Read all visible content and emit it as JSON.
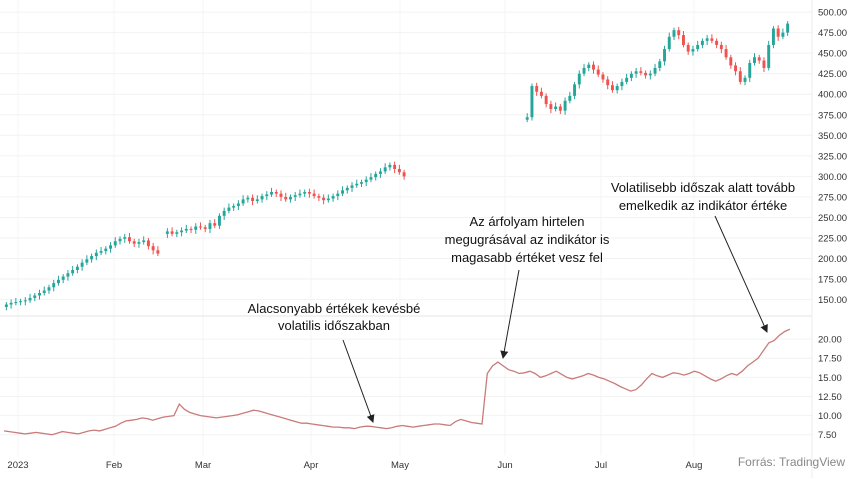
{
  "chart_data": [
    {
      "type": "candlestick",
      "ylim": [
        130,
        505
      ],
      "y_ticks": [
        "150.00",
        "175.00",
        "200.00",
        "225.00",
        "250.00",
        "275.00",
        "300.00",
        "325.00",
        "350.00",
        "375.00",
        "400.00",
        "425.00",
        "450.00",
        "475.00",
        "500.00"
      ],
      "colors": {
        "up": "#26a69a",
        "down": "#ef5350"
      },
      "closes": [
        [
          144,
          0
        ],
        [
          146,
          0
        ],
        [
          147,
          0
        ],
        [
          148,
          0
        ],
        [
          149,
          0
        ],
        [
          152,
          0
        ],
        [
          155,
          0
        ],
        [
          158,
          0
        ],
        [
          161,
          0
        ],
        [
          165,
          0
        ],
        [
          170,
          0
        ],
        [
          174,
          0
        ],
        [
          178,
          0
        ],
        [
          182,
          0
        ],
        [
          186,
          0
        ],
        [
          190,
          0
        ],
        [
          195,
          0
        ],
        [
          199,
          0
        ],
        [
          203,
          0
        ],
        [
          207,
          0
        ],
        [
          209,
          0
        ],
        [
          212,
          0
        ],
        [
          216,
          0
        ],
        [
          221,
          0
        ],
        [
          224,
          0
        ],
        [
          226,
          0
        ],
        [
          221,
          0
        ],
        [
          218,
          0
        ],
        [
          220,
          0
        ],
        [
          222,
          0
        ],
        [
          215,
          0
        ],
        [
          210,
          0
        ],
        [
          206,
          0
        ],
        [
          null,
          0
        ],
        [
          233,
          1
        ],
        [
          230,
          0
        ],
        [
          232,
          0
        ],
        [
          234,
          0
        ],
        [
          236,
          0
        ],
        [
          235,
          0
        ],
        [
          239,
          0
        ],
        [
          238,
          0
        ],
        [
          236,
          0
        ],
        [
          243,
          0
        ],
        [
          240,
          0
        ],
        [
          252,
          0
        ],
        [
          258,
          0
        ],
        [
          262,
          0
        ],
        [
          264,
          0
        ],
        [
          267,
          0
        ],
        [
          272,
          0
        ],
        [
          274,
          0
        ],
        [
          270,
          0
        ],
        [
          272,
          0
        ],
        [
          276,
          0
        ],
        [
          278,
          0
        ],
        [
          281,
          0
        ],
        [
          279,
          0
        ],
        [
          275,
          0
        ],
        [
          272,
          0
        ],
        [
          275,
          0
        ],
        [
          277,
          0
        ],
        [
          279,
          0
        ],
        [
          281,
          0
        ],
        [
          279,
          0
        ],
        [
          276,
          0
        ],
        [
          274,
          0
        ],
        [
          271,
          0
        ],
        [
          273,
          0
        ],
        [
          276,
          0
        ],
        [
          279,
          0
        ],
        [
          283,
          0
        ],
        [
          286,
          0
        ],
        [
          289,
          0
        ],
        [
          291,
          0
        ],
        [
          293,
          0
        ],
        [
          296,
          0
        ],
        [
          299,
          0
        ],
        [
          303,
          0
        ],
        [
          306,
          0
        ],
        [
          311,
          0
        ],
        [
          314,
          0
        ],
        [
          309,
          0
        ],
        [
          305,
          0
        ],
        [
          300,
          0
        ],
        [
          null,
          0
        ],
        [
          null,
          0
        ],
        [
          null,
          0
        ],
        [
          null,
          0
        ],
        [
          null,
          0
        ],
        [
          null,
          0
        ],
        [
          null,
          0
        ],
        [
          null,
          0
        ],
        [
          null,
          0
        ],
        [
          null,
          0
        ],
        [
          null,
          0
        ],
        [
          null,
          0
        ],
        [
          null,
          0
        ],
        [
          null,
          0
        ],
        [
          null,
          0
        ],
        [
          null,
          0
        ],
        [
          null,
          0
        ],
        [
          null,
          0
        ],
        [
          null,
          0
        ],
        [
          null,
          0
        ],
        [
          null,
          0
        ],
        [
          null,
          0
        ],
        [
          null,
          0
        ],
        [
          null,
          0
        ],
        [
          null,
          0
        ],
        [
          372,
          1
        ],
        [
          410,
          0
        ],
        [
          403,
          0
        ],
        [
          398,
          0
        ],
        [
          388,
          0
        ],
        [
          382,
          0
        ],
        [
          385,
          0
        ],
        [
          380,
          0
        ],
        [
          392,
          0
        ],
        [
          398,
          0
        ],
        [
          412,
          0
        ],
        [
          425,
          0
        ],
        [
          432,
          0
        ],
        [
          436,
          0
        ],
        [
          430,
          0
        ],
        [
          424,
          0
        ],
        [
          418,
          0
        ],
        [
          411,
          0
        ],
        [
          405,
          0
        ],
        [
          410,
          0
        ],
        [
          415,
          0
        ],
        [
          420,
          0
        ],
        [
          425,
          0
        ],
        [
          428,
          0
        ],
        [
          426,
          0
        ],
        [
          423,
          0
        ],
        [
          425,
          0
        ],
        [
          432,
          0
        ],
        [
          440,
          0
        ],
        [
          455,
          0
        ],
        [
          470,
          0
        ],
        [
          478,
          0
        ],
        [
          472,
          0
        ],
        [
          460,
          0
        ],
        [
          452,
          0
        ],
        [
          455,
          0
        ],
        [
          460,
          0
        ],
        [
          465,
          0
        ],
        [
          468,
          0
        ],
        [
          465,
          0
        ],
        [
          460,
          0
        ],
        [
          455,
          0
        ],
        [
          445,
          0
        ],
        [
          435,
          0
        ],
        [
          428,
          0
        ],
        [
          415,
          0
        ],
        [
          420,
          0
        ],
        [
          438,
          0
        ],
        [
          445,
          0
        ],
        [
          441,
          0
        ],
        [
          432,
          0
        ],
        [
          460,
          0
        ],
        [
          480,
          0
        ],
        [
          470,
          0
        ],
        [
          475,
          0
        ],
        [
          486,
          0
        ]
      ],
      "volatility_indicator": {
        "ylim": [
          5.5,
          22.5
        ],
        "y_ticks": [
          "7.50",
          "10.00",
          "12.50",
          "15.00",
          "17.50",
          "20.00"
        ],
        "color": "#c97b7b",
        "values": [
          8.0,
          7.9,
          7.8,
          7.7,
          7.6,
          7.7,
          7.8,
          7.7,
          7.6,
          7.5,
          7.7,
          7.9,
          7.8,
          7.7,
          7.6,
          7.8,
          8.0,
          8.1,
          8.0,
          8.2,
          8.4,
          8.6,
          9.0,
          9.3,
          9.4,
          9.5,
          9.7,
          9.6,
          9.4,
          9.6,
          9.8,
          9.9,
          10.0,
          11.5,
          10.8,
          10.4,
          10.2,
          10.0,
          9.9,
          9.8,
          9.7,
          9.8,
          9.9,
          10.0,
          10.1,
          10.3,
          10.5,
          10.7,
          10.6,
          10.4,
          10.2,
          10.0,
          9.8,
          9.6,
          9.4,
          9.2,
          9.0,
          9.0,
          8.9,
          8.8,
          8.7,
          8.6,
          8.5,
          8.5,
          8.4,
          8.4,
          8.3,
          8.5,
          8.6,
          8.6,
          8.5,
          8.4,
          8.3,
          8.4,
          8.6,
          8.7,
          8.6,
          8.5,
          8.6,
          8.7,
          8.8,
          8.9,
          8.9,
          8.8,
          8.7,
          9.2,
          9.5,
          9.3,
          9.1,
          9.0,
          8.9,
          15.5,
          16.5,
          17.0,
          16.5,
          16.0,
          15.8,
          15.5,
          15.6,
          15.8,
          15.5,
          15.0,
          15.2,
          15.5,
          15.8,
          15.4,
          15.0,
          14.8,
          15.0,
          15.2,
          15.5,
          15.3,
          15.0,
          14.8,
          14.5,
          14.2,
          13.8,
          13.5,
          13.2,
          13.4,
          14.0,
          14.8,
          15.5,
          15.2,
          15.0,
          15.3,
          15.6,
          15.5,
          15.3,
          15.5,
          15.8,
          15.6,
          15.2,
          14.8,
          14.5,
          14.8,
          15.2,
          15.5,
          15.3,
          15.8,
          16.5,
          17.0,
          17.5,
          18.5,
          19.5,
          19.8,
          20.5,
          21.0,
          21.3
        ]
      },
      "x_labels": [
        "2023",
        "Feb",
        "Mar",
        "Apr",
        "May",
        "Jun",
        "Jul",
        "Aug"
      ]
    }
  ],
  "annotations": [
    {
      "lines": [
        "Alacsonyabb értékek kevésbé",
        "volatilis időszakban"
      ]
    },
    {
      "lines": [
        "Az árfolyam hirtelen",
        "megugrásával az indikátor is",
        "magasabb értéket vesz fel"
      ]
    },
    {
      "lines": [
        "Volatilisebb időszak alatt tovább",
        "emelkedik az indikátor értéke"
      ]
    }
  ],
  "source": "Forrás: TradingView"
}
